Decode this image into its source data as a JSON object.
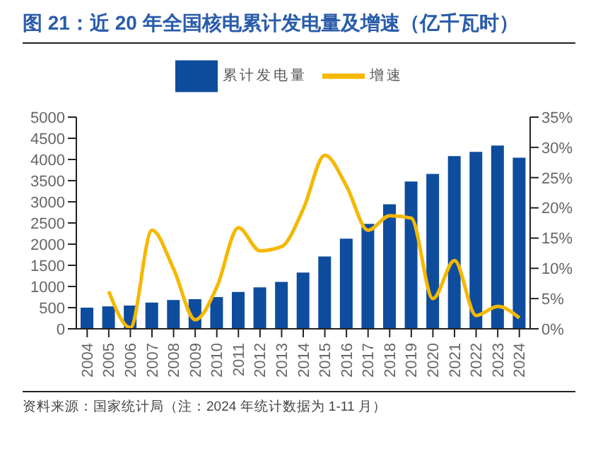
{
  "chart_data": {
    "type": "bar",
    "title": "图 21：近 20 年全国核电累计发电量及增速（亿千瓦时）",
    "annotations": [
      "资料来源：国家统计局（注：2024 年统计数据为 1-11 月）"
    ],
    "categories": [
      "2004",
      "2005",
      "2006",
      "2007",
      "2008",
      "2009",
      "2010",
      "2011",
      "2012",
      "2013",
      "2014",
      "2015",
      "2016",
      "2017",
      "2018",
      "2019",
      "2020",
      "2021",
      "2022",
      "2023",
      "2024"
    ],
    "series": [
      {
        "name": "累计发电量",
        "color": "#0e4c9e",
        "values": [
          500,
          530,
          550,
          620,
          680,
          700,
          750,
          870,
          980,
          1110,
          1330,
          1710,
          2130,
          2480,
          2940,
          3480,
          3660,
          4080,
          4180,
          4330,
          4040
        ]
      },
      {
        "name": "增速",
        "type": "line",
        "axis": "y2",
        "color": "#f5b800",
        "values": [
          null,
          6.2,
          0.2,
          16.3,
          9.9,
          1.5,
          6.9,
          16.7,
          12.9,
          13.6,
          19.8,
          28.7,
          23.6,
          16.3,
          18.7,
          18.3,
          5.0,
          11.3,
          2.2,
          3.7,
          1.8
        ]
      }
    ],
    "ylim": [
      0,
      5000
    ],
    "yticks": [
      0,
      500,
      1000,
      1500,
      2000,
      2500,
      3000,
      3500,
      4000,
      4500,
      5000
    ],
    "y2lim": [
      0,
      35
    ],
    "y2ticks": [
      {
        "value": 0,
        "label": "0%"
      },
      {
        "value": 5,
        "label": "5%"
      },
      {
        "value": 10,
        "label": "10%"
      },
      {
        "value": 15,
        "label": "15%"
      },
      {
        "value": 20,
        "label": "20%"
      },
      {
        "value": 25,
        "label": "25%"
      },
      {
        "value": 30,
        "label": "30%"
      },
      {
        "value": 35,
        "label": "35%"
      }
    ],
    "grid": false,
    "legend": "top",
    "marker": "none",
    "line_style": "solid"
  }
}
